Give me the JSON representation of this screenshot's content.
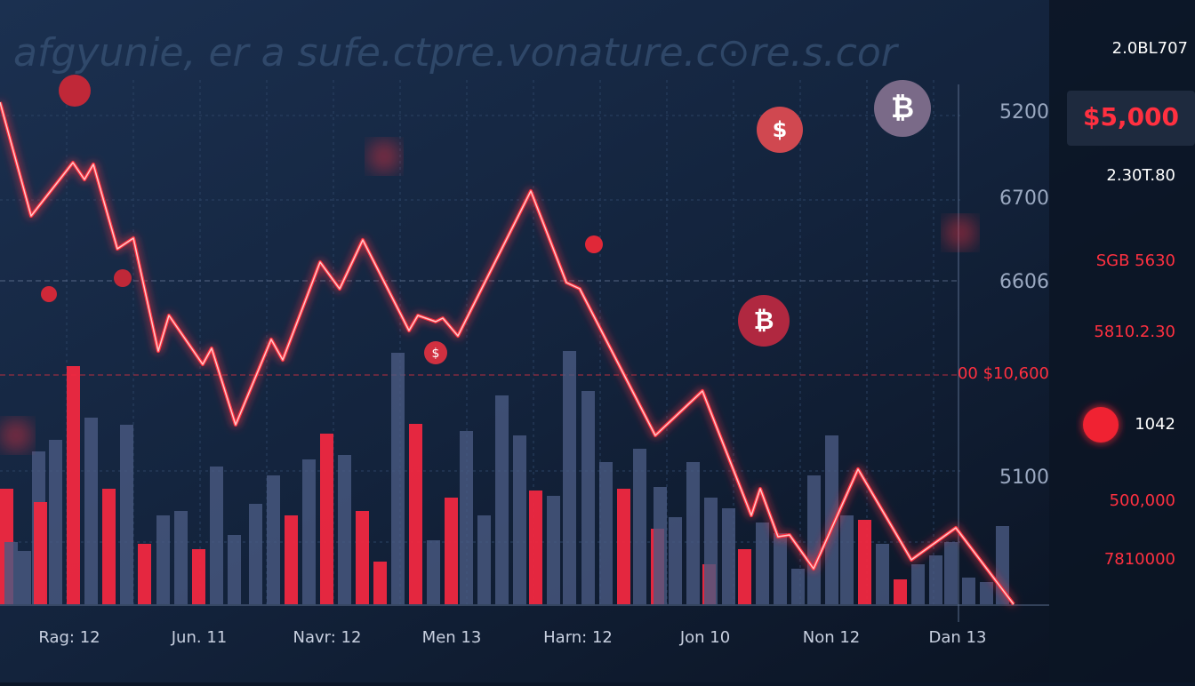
{
  "watermark": "afgyunie, er a sufe.ctpre.vonature.c⊙re.s.cor",
  "axis_labels": [
    "5200",
    "6700",
    "6606",
    "00 $10,600",
    "5100"
  ],
  "x_labels": [
    "Rag: 12",
    "Jun. 11",
    "Navr: 12",
    "Men 13",
    "Harn: 12",
    "Jon 10",
    "Non 12",
    "Dan 13"
  ],
  "panel": {
    "top": "2.0BL707",
    "price": "$5,000",
    "line2": "2.30T.80",
    "line3": "SGB 5630",
    "line4": "5810.2.30",
    "line5": "1042",
    "line6": "500,000",
    "line7": "7810000"
  },
  "icons": [
    "$",
    "₿",
    "₿",
    "$"
  ]
}
